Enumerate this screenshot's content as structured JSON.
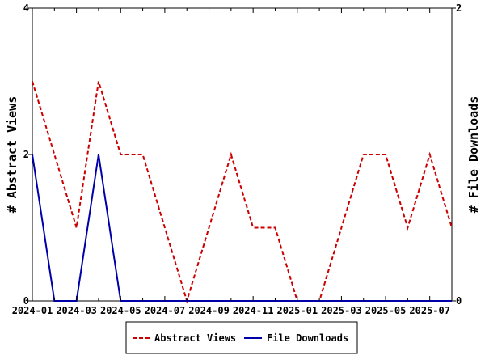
{
  "chart_data": {
    "type": "line",
    "title": "",
    "x": [
      "2024-01",
      "2024-02",
      "2024-03",
      "2024-04",
      "2024-05",
      "2024-06",
      "2024-07",
      "2024-08",
      "2024-09",
      "2024-10",
      "2024-11",
      "2024-12",
      "2025-01",
      "2025-02",
      "2025-03",
      "2025-04",
      "2025-05",
      "2025-06",
      "2025-07",
      "2025-08"
    ],
    "x_ticks": [
      "2024-01",
      "2024-03",
      "2024-05",
      "2024-07",
      "2024-09",
      "2024-11",
      "2025-01",
      "2025-03",
      "2025-05",
      "2025-07"
    ],
    "ylabel_left": "# Abstract Views",
    "ylabel_right": "# File Downloads",
    "ylim_left": [
      0,
      4
    ],
    "ylim_right": [
      0,
      2
    ],
    "yticks_left": [
      0,
      2,
      4
    ],
    "yticks_right": [
      0,
      2
    ],
    "grid": false,
    "legend_position": "bottom-center",
    "series": [
      {
        "name": "Abstract Views",
        "axis": "left",
        "color": "#cc0000",
        "style": "dashed",
        "values": [
          3,
          2,
          1,
          3,
          2,
          2,
          1,
          0,
          1,
          2,
          1,
          1,
          0,
          0,
          1,
          2,
          2,
          1,
          2,
          1
        ]
      },
      {
        "name": "File Downloads",
        "axis": "right",
        "color": "#0000aa",
        "style": "solid",
        "values": [
          1,
          0,
          0,
          1,
          0,
          0,
          0,
          0,
          0,
          0,
          0,
          0,
          0,
          0,
          0,
          0,
          0,
          0,
          0,
          0
        ]
      }
    ]
  }
}
